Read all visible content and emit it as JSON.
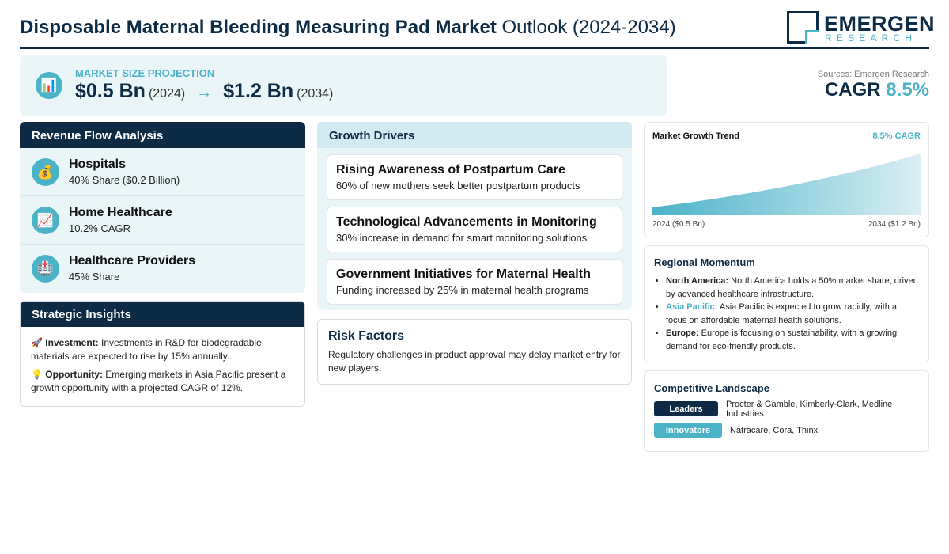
{
  "header": {
    "title_bold": "Disposable Maternal Bleeding Measuring Pad Market",
    "title_rest": "Outlook (2024-2034)",
    "logo_main": "EMERGEN",
    "logo_sub": "RESEARCH"
  },
  "projection": {
    "label": "MARKET SIZE PROJECTION",
    "icon": "bar-chart-icon",
    "start_value": "$0.5 Bn",
    "start_year": "(2024)",
    "arrow": "→",
    "end_value": "$1.2 Bn",
    "end_year": "(2034)"
  },
  "cagr": {
    "source": "Sources: Emergen Research",
    "label": "CAGR",
    "value": "8.5%"
  },
  "revenue": {
    "title": "Revenue Flow Analysis",
    "items": [
      {
        "icon": "💰",
        "icon_name": "money-bag-icon",
        "name": "Hospitals",
        "detail": "40% Share ($0.2 Billion)"
      },
      {
        "icon": "📈",
        "icon_name": "trend-up-icon",
        "name": "Home Healthcare",
        "detail": "10.2% CAGR"
      },
      {
        "icon": "🏥",
        "icon_name": "hospital-icon",
        "name": "Healthcare Providers",
        "detail": "45% Share"
      }
    ]
  },
  "strategic": {
    "title": "Strategic Insights",
    "investment_icon": "🚀",
    "investment_label": "Investment:",
    "investment_text": "Investments in R&D for biodegradable materials are expected to rise by 15% annually.",
    "opportunity_icon": "💡",
    "opportunity_label": "Opportunity:",
    "opportunity_text": "Emerging markets in Asia Pacific present a growth opportunity with a projected CAGR of 12%."
  },
  "growth": {
    "title": "Growth Drivers",
    "drivers": [
      {
        "title": "Rising Awareness of Postpartum Care",
        "detail": "60% of new mothers seek better postpartum products"
      },
      {
        "title": "Technological Advancements in Monitoring",
        "detail": "30% increase in demand for smart monitoring solutions"
      },
      {
        "title": "Government Initiatives for Maternal Health",
        "detail": "Funding increased by 25% in maternal health programs"
      }
    ]
  },
  "risk": {
    "title": "Risk Factors",
    "text": "Regulatory challenges in product approval may delay market entry for new players."
  },
  "trend": {
    "title": "Market Growth Trend",
    "cagr_label": "8.5% CAGR",
    "start_label": "2024 ($0.5 Bn)",
    "end_label": "2034 ($1.2 Bn)"
  },
  "chart_data": {
    "type": "area",
    "x": [
      2024,
      2034
    ],
    "values": [
      0.5,
      1.2
    ],
    "title": "Market Growth Trend"
  },
  "regional": {
    "title": "Regional Momentum",
    "items": [
      {
        "region": "North America:",
        "text": "North America holds a 50% market share, driven by advanced healthcare infrastructure."
      },
      {
        "region": "Asia Pacific:",
        "text": "Asia Pacific is expected to grow rapidly, with a focus on affordable maternal health solutions."
      },
      {
        "region": "Europe:",
        "text": "Europe is focusing on sustainability, with a growing demand for eco-friendly products."
      }
    ]
  },
  "competitive": {
    "title": "Competitive Landscape",
    "leaders_label": "Leaders",
    "leaders": "Procter & Gamble, Kimberly-Clark, Medline Industries",
    "innovators_label": "Innovators",
    "innovators": "Natracare, Cora, Thinx"
  },
  "colors": {
    "navy": "#0d2b45",
    "accent": "#4ab3c8",
    "panel": "#eaf5f8"
  }
}
